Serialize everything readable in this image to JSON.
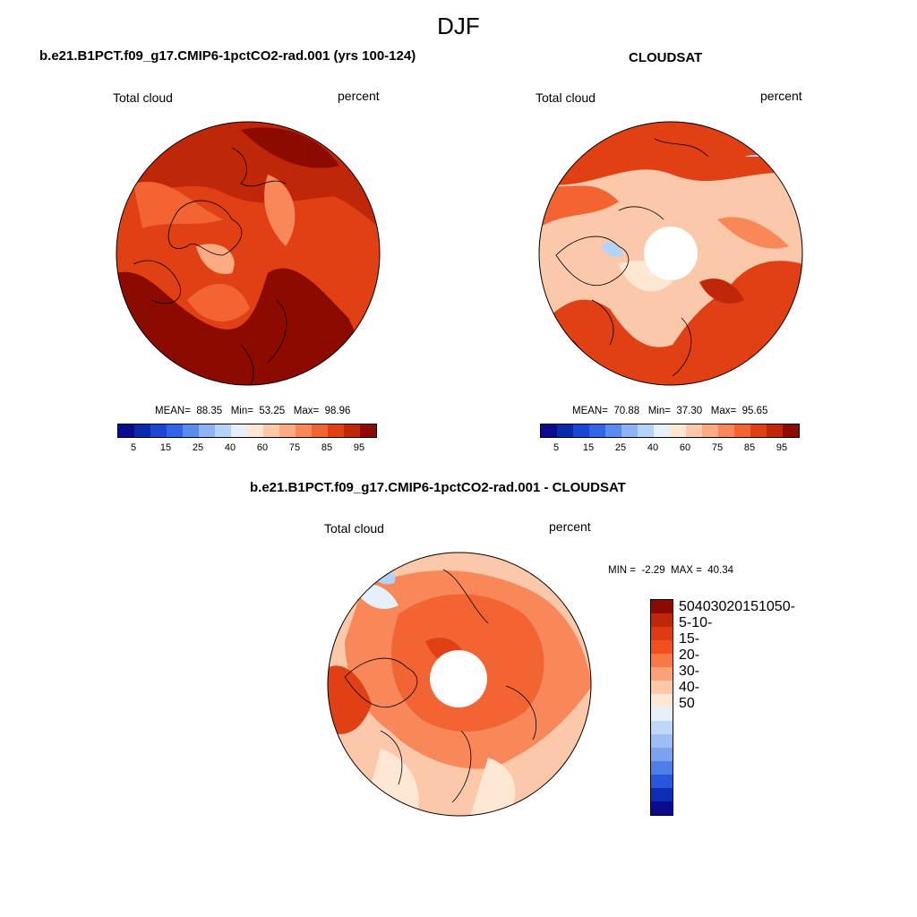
{
  "season": "DJF",
  "panels": [
    {
      "title": "b.e21.B1PCT.f09_g17.CMIP6-1pctCO2-rad.001 (yrs 100-124)",
      "left_label": "Total cloud",
      "right_label": "percent",
      "mean_label": "MEAN=",
      "mean": "88.35",
      "min_label": "Min=",
      "min": "53.25",
      "max_label": "Max=",
      "max": "98.96"
    },
    {
      "title": "CLOUDSAT",
      "left_label": "Total cloud",
      "right_label": "percent",
      "mean_label": "MEAN=",
      "mean": "70.88",
      "min_label": "Min=",
      "min": "37.30",
      "max_label": "Max=",
      "max": "95.65"
    },
    {
      "title": "b.e21.B1PCT.f09_g17.CMIP6-1pctCO2-rad.001 - CLOUDSAT",
      "left_label": "Total cloud",
      "right_label": "percent",
      "min_label": "MIN =",
      "min": "-2.29",
      "max_label": "MAX =",
      "max": "40.34"
    }
  ],
  "colorbar_abs": {
    "colors": [
      "#0a0a8c",
      "#0a2aa8",
      "#1e46d6",
      "#3264e6",
      "#5a8cf0",
      "#8cb4f5",
      "#b4d2fa",
      "#e6f0fa",
      "#fde6d2",
      "#fcc8aa",
      "#fcaa82",
      "#f8875a",
      "#f26432",
      "#e04014",
      "#c02608",
      "#8c0a00"
    ],
    "labels": [
      "5",
      "15",
      "25",
      "40",
      "60",
      "75",
      "85",
      "95"
    ]
  },
  "colorbar_diff": {
    "colors": [
      "#8c0a00",
      "#c02608",
      "#e03a14",
      "#f2501e",
      "#f87846",
      "#fca078",
      "#fcc8a8",
      "#fde8d8",
      "#e6f0fa",
      "#c0d8f8",
      "#9cbef5",
      "#7aa2ef",
      "#4e7ee8",
      "#2856dc",
      "#0c2eb4",
      "#0a0a8c"
    ],
    "labels": [
      "50",
      "40",
      "30",
      "20",
      "15",
      "10",
      "5",
      "0",
      "-5",
      "-10",
      "-15",
      "-20",
      "-30",
      "-40",
      "-50"
    ]
  }
}
